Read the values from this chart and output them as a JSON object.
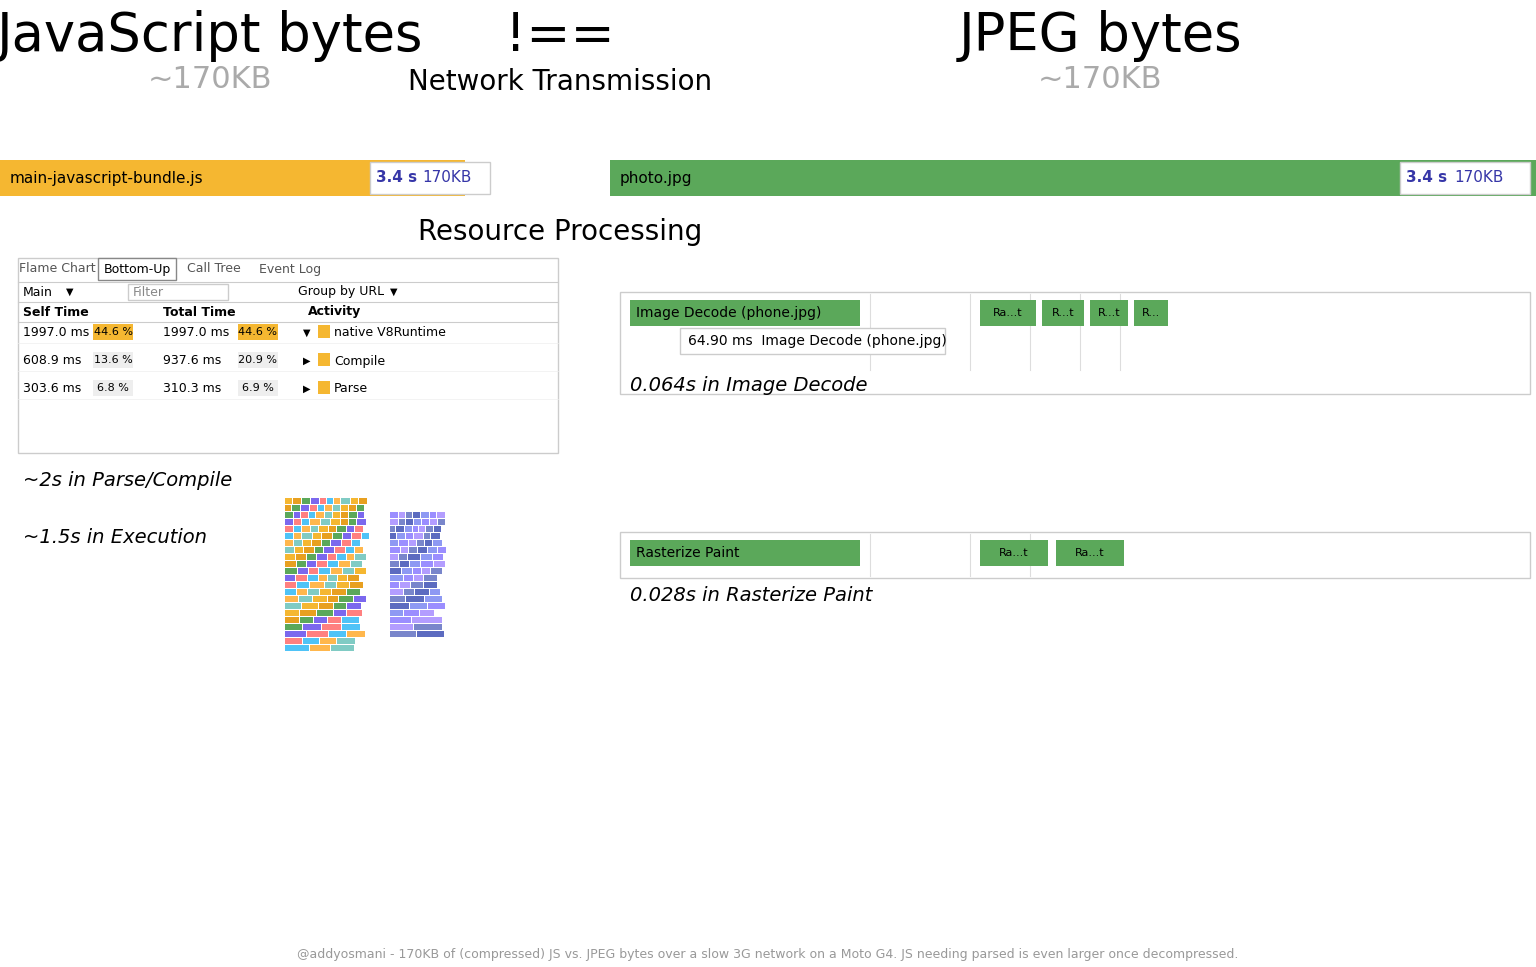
{
  "title_left": "JavaScript bytes",
  "title_not_equal": "!==",
  "title_right": "JPEG bytes",
  "subtitle_left": "~170KB",
  "subtitle_right": "~170KB",
  "section1_title": "Network Transmission",
  "section2_title": "Resource Processing",
  "js_bar_label": "main-javascript-bundle.js",
  "js_bar_time": "3.4 s",
  "js_bar_size": "170KB",
  "js_bar_color": "#F5B731",
  "jpeg_bar_label": "photo.jpg",
  "jpeg_bar_time": "3.4 s",
  "jpeg_bar_size": "170KB",
  "jpeg_bar_color": "#5BA85A",
  "table_tabs": [
    "Flame Chart",
    "Bottom-Up",
    "Call Tree",
    "Event Log"
  ],
  "table_active_tab": "Bottom-Up",
  "table_col1": "Main",
  "table_col2": "Filter",
  "table_col3": "Group by URL",
  "table_header": [
    "Self Time",
    "Total Time",
    "Activity"
  ],
  "table_rows": [
    [
      "1997.0 ms",
      "44.6 %",
      "1997.0 ms",
      "44.6 %",
      "native V8Runtime"
    ],
    [
      "608.9 ms",
      "13.6 %",
      "937.6 ms",
      "20.9 %",
      "Compile"
    ],
    [
      "303.6 ms",
      "6.8 %",
      "310.3 ms",
      "6.9 %",
      "Parse"
    ]
  ],
  "parse_compile_label": "~2s in Parse/Compile",
  "execution_label": "~1.5s in Execution",
  "image_decode_label": "0.064s in Image Decode",
  "rasterize_label": "0.028s in Rasterize Paint",
  "image_decode_bar1": "Image Decode (phone.jpg)",
  "image_decode_small": [
    "Ra...t",
    "R...t",
    "R...t",
    "R..."
  ],
  "rasterize_bar1": "Rasterize Paint",
  "rasterize_small": [
    "Ra...t",
    "Ra...t"
  ],
  "tooltip_js_text": "64.90 ms  Image Decode (phone.jpg)",
  "footer": "@addyosmani - 170KB of (compressed) JS vs. JPEG bytes over a slow 3G network on a Moto G4. JS needing parsed is even larger once decompressed.",
  "bg_color": "#FFFFFF",
  "green_color": "#5BA85A",
  "gold_color": "#F5B731",
  "blue_color": "#3636A8",
  "subtitle_color": "#AAAAAA",
  "gray_color": "#999999",
  "title_fs": 38,
  "subtitle_fs": 22,
  "section_fs": 20,
  "bar_label_fs": 11,
  "tooltip_fs": 11,
  "table_fs": 9,
  "label_fs": 14
}
